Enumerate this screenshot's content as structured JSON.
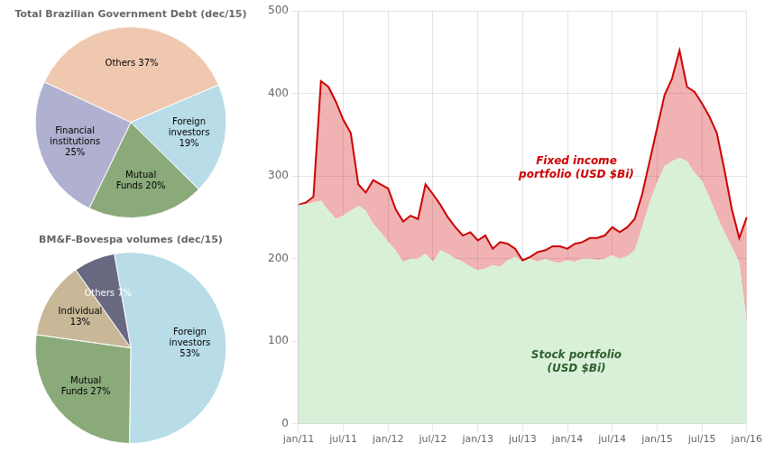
{
  "chart_data": [
    {
      "type": "area",
      "categories": [
        "jan/11",
        null,
        null,
        null,
        null,
        null,
        "jul/11",
        null,
        null,
        null,
        null,
        null,
        "jan/12",
        null,
        null,
        null,
        null,
        null,
        "jul/12",
        null,
        null,
        null,
        null,
        null,
        "jan/13",
        null,
        null,
        null,
        null,
        null,
        "jul/13",
        null,
        null,
        null,
        null,
        null,
        "jan/14",
        null,
        null,
        null,
        null,
        null,
        "jul/14",
        null,
        null,
        null,
        null,
        null,
        "jan/15",
        null,
        null,
        null,
        null,
        null,
        "jul/15",
        null,
        null,
        null,
        null,
        null,
        "jan/16"
      ],
      "series": [
        {
          "color": "#d8f0d8",
          "values": [
            265,
            266,
            268,
            270,
            258,
            248,
            252,
            258,
            264,
            258,
            242,
            232,
            220,
            210,
            196,
            200,
            200,
            206,
            196,
            210,
            206,
            200,
            196,
            190,
            186,
            188,
            192,
            190,
            198,
            202,
            196,
            200,
            196,
            200,
            196,
            195,
            198,
            196,
            200,
            200,
            198,
            200,
            204,
            200,
            203,
            210,
            238,
            268,
            292,
            312,
            318,
            322,
            318,
            304,
            294,
            274,
            252,
            232,
            214,
            195,
            122
          ]
        },
        {
          "color": "#cc0000",
          "values": [
            265,
            268,
            275,
            415,
            408,
            390,
            368,
            352,
            290,
            280,
            295,
            290,
            285,
            260,
            245,
            252,
            248,
            290,
            278,
            265,
            250,
            238,
            228,
            232,
            222,
            228,
            212,
            220,
            218,
            212,
            198,
            202,
            208,
            210,
            215,
            215,
            212,
            218,
            220,
            225,
            225,
            228,
            238,
            232,
            238,
            248,
            278,
            318,
            358,
            398,
            418,
            452,
            408,
            402,
            388,
            372,
            352,
            308,
            260,
            225,
            250
          ]
        }
      ],
      "annotations": [
        "Fixed income\nportfolio (USD $Bi)",
        "Stock portfolio\n(USD $Bi)"
      ],
      "ylim": [
        0,
        500
      ],
      "yticks": [
        0,
        100,
        200,
        300,
        400,
        500
      ],
      "grid": true
    },
    {
      "type": "pie",
      "title": "Total Brazilian Government Debt (dec/15)",
      "categories": [
        "Others 37%",
        "Foreign\ninvestors\n19%",
        "Mutual\nFunds 20%",
        "Financial\ninstitutions\n25%"
      ],
      "values": [
        37,
        19,
        20,
        25
      ],
      "colors": [
        "#f0c8b0",
        "#b8dce8",
        "#8aaa7a",
        "#b0b0d0"
      ]
    },
    {
      "type": "pie",
      "title": "BM&F-Bovespa volumes (dec/15)",
      "categories": [
        "Foreign\ninvestors\n53%",
        "Mutual\nFunds 27%",
        "Individual\n13%",
        "Others 7%"
      ],
      "values": [
        53,
        27,
        13,
        7
      ],
      "colors": [
        "#b8dce8",
        "#8aaa7a",
        "#c8b898",
        "#686880"
      ]
    }
  ]
}
